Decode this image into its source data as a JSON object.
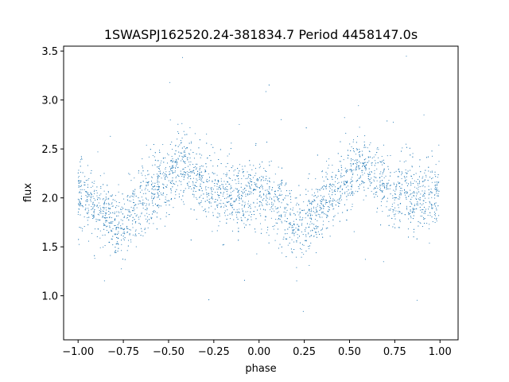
{
  "chart_data": {
    "type": "scatter",
    "title": "1SWASPJ162520.24-381834.7 Period 4458147.0s",
    "xlabel": "phase",
    "ylabel": "flux",
    "xlim": [
      -1.08,
      1.1
    ],
    "ylim": [
      0.55,
      3.55
    ],
    "xticks": [
      -1.0,
      -0.75,
      -0.5,
      -0.25,
      0.0,
      0.25,
      0.5,
      0.75,
      1.0
    ],
    "xtick_labels": [
      "−1.00",
      "−0.75",
      "−0.50",
      "−0.25",
      "0.00",
      "0.25",
      "0.50",
      "0.75",
      "1.00"
    ],
    "yticks": [
      1.0,
      1.5,
      2.0,
      2.5,
      3.0,
      3.5
    ],
    "ytick_labels": [
      "1.0",
      "1.5",
      "2.0",
      "2.5",
      "3.0",
      "3.5"
    ],
    "grid": false,
    "point_color": "#1f77b4",
    "series_profile": {
      "phase": [
        0.0,
        0.05,
        0.1,
        0.15,
        0.2,
        0.25,
        0.3,
        0.35,
        0.4,
        0.45,
        0.5,
        0.55,
        0.6,
        0.65,
        0.7,
        0.75,
        0.8,
        0.85,
        0.9,
        0.95,
        1.0
      ],
      "flux_mean": [
        2.05,
        2.0,
        1.9,
        1.85,
        1.75,
        1.7,
        1.85,
        1.95,
        2.0,
        2.15,
        2.2,
        2.35,
        2.3,
        2.2,
        2.15,
        2.05,
        2.1,
        2.0,
        2.0,
        2.05,
        2.05
      ]
    }
  }
}
